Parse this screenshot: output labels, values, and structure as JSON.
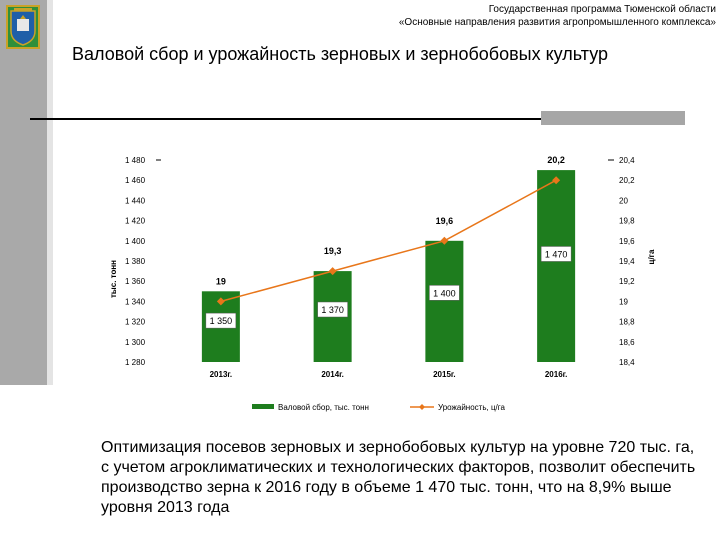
{
  "header": {
    "line1": "Государственная программа Тюменской области",
    "line2": "«Основные направления развития агропромышленного комплекса»"
  },
  "slide_title": "Валовой сбор и урожайность зерновых и зернобобовых культур",
  "body_text": "Оптимизация посевов зерновых и зернобобовых культур на уровне 720 тыс. га, с учетом агроклиматических и технологических факторов, позволит обеспечить производство зерна к 2016 году в объеме 1 470 тыс. тонн, что на 8,9% выше уровня 2013 года",
  "colors": {
    "bar": "#1e7d1e",
    "line": "#e8761a",
    "sidebar": "#a9a9a9"
  },
  "chart_data": {
    "type": "bar",
    "categories": [
      "2013г.",
      "2014г.",
      "2015г.",
      "2016г."
    ],
    "series": [
      {
        "name": "Валовой сбор, тыс. тонн",
        "axis": "left",
        "values": [
          1350,
          1370,
          1400,
          1470
        ],
        "labels": [
          "1 350",
          "1 370",
          "1 400",
          "1 470"
        ]
      },
      {
        "name": "Урожайность, ц/га",
        "axis": "right",
        "type": "line",
        "values": [
          19,
          19.3,
          19.6,
          20.2
        ],
        "labels": [
          "19",
          "19,3",
          "19,6",
          "20,2"
        ]
      }
    ],
    "ylabel": "тыс. тонн",
    "y2label": "ц/га",
    "ylim": [
      1280,
      1480
    ],
    "y2lim": [
      18.4,
      20.4
    ],
    "yticks": [
      "1 280",
      "1 300",
      "1 320",
      "1 340",
      "1 360",
      "1 380",
      "1 400",
      "1 420",
      "1 440",
      "1 460",
      "1 480"
    ],
    "y2ticks": [
      "18,4",
      "18,6",
      "18,8",
      "19",
      "19,2",
      "19,4",
      "19,6",
      "19,8",
      "20",
      "20,2",
      "20,4"
    ],
    "grid": false,
    "legend_position": "bottom"
  }
}
